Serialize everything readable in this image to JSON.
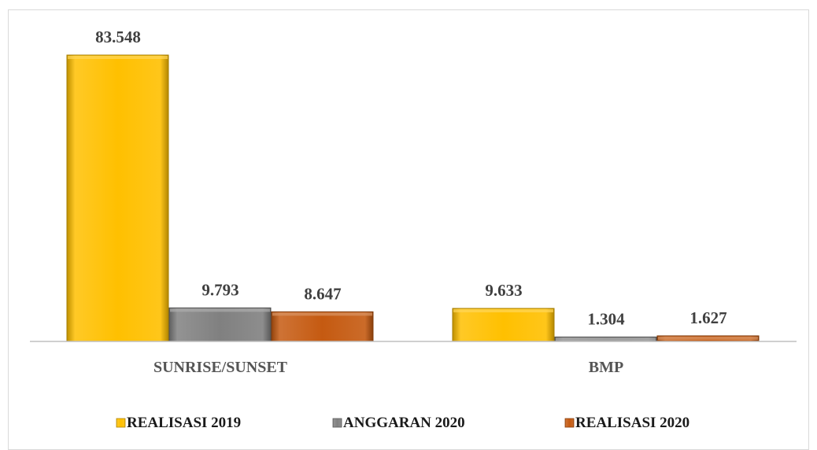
{
  "chart_data": {
    "type": "bar",
    "categories": [
      "SUNRISE/SUNSET",
      "BMP"
    ],
    "series": [
      {
        "name": "REALISASI 2019",
        "values": [
          83.548,
          9.633
        ],
        "labels": [
          "83.548",
          "9.633"
        ],
        "color": "#FFC000"
      },
      {
        "name": "ANGGARAN 2020",
        "values": [
          9.793,
          1.304
        ],
        "labels": [
          "9.793",
          "1.304"
        ],
        "color": "#808080"
      },
      {
        "name": "REALISASI 2020",
        "values": [
          8.647,
          1.627
        ],
        "labels": [
          "8.647",
          "1.627"
        ],
        "color": "#C55A11"
      }
    ],
    "ylim": [
      0,
      90
    ],
    "grid": false,
    "legend_position": "bottom"
  }
}
